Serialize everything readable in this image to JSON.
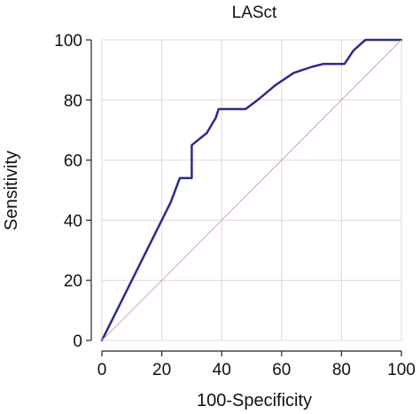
{
  "chart_data": {
    "type": "line",
    "title": "LASct",
    "xlabel": "100-Specificity",
    "ylabel": "Sensitivity",
    "xlim": [
      0,
      100
    ],
    "ylim": [
      0,
      100
    ],
    "xticks": [
      0,
      20,
      40,
      60,
      80,
      100
    ],
    "yticks": [
      0,
      20,
      40,
      60,
      80,
      100
    ],
    "x_tick_labels": [
      "0",
      "20",
      "40",
      "60",
      "80",
      "100"
    ],
    "y_tick_labels": [
      "0",
      "20",
      "40",
      "60",
      "80",
      "100"
    ],
    "grid": true,
    "legend": "none",
    "series": [
      {
        "role": "roc_curve",
        "color": "#2b2b8a",
        "x": [
          0,
          23,
          26,
          30,
          30,
          35,
          38,
          39,
          48,
          52,
          58,
          64,
          70,
          74,
          81,
          84,
          88,
          93,
          100
        ],
        "y": [
          0,
          46,
          54,
          54,
          65,
          69,
          74,
          77,
          77,
          80,
          85,
          89,
          91,
          92,
          92,
          96.5,
          100,
          100,
          100
        ]
      },
      {
        "role": "reference_diagonal",
        "color": "#e0a0a0",
        "x": [
          0,
          100
        ],
        "y": [
          0,
          100
        ]
      }
    ]
  }
}
